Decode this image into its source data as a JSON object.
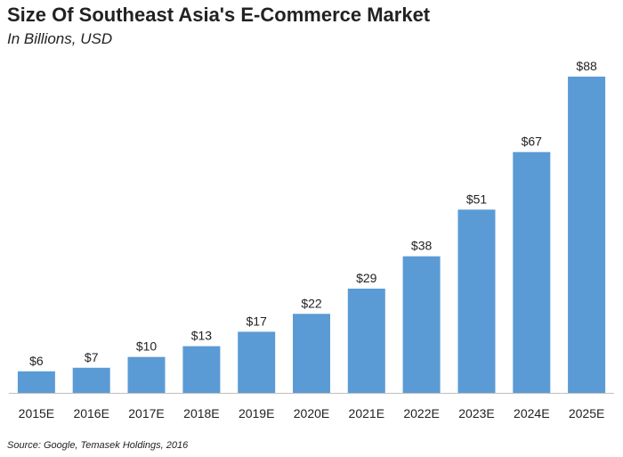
{
  "chart_data": {
    "type": "bar",
    "title": "Size Of Southeast Asia's E-Commerce Market",
    "subtitle": "In Billions, USD",
    "source": "Source: Google, Temasek Holdings, 2016",
    "xlabel": "",
    "ylabel": "",
    "categories": [
      "2015E",
      "2016E",
      "2017E",
      "2018E",
      "2019E",
      "2020E",
      "2021E",
      "2022E",
      "2023E",
      "2024E",
      "2025E"
    ],
    "values": [
      6,
      7,
      10,
      13,
      17,
      22,
      29,
      38,
      51,
      67,
      88
    ],
    "value_labels": [
      "$6",
      "$7",
      "$10",
      "$13",
      "$17",
      "$22",
      "$29",
      "$38",
      "$51",
      "$67",
      "$88"
    ],
    "ylim": [
      0,
      88
    ],
    "grid": false,
    "bar_color": "#5b9bd5",
    "axis_color": "#bfbfbf"
  }
}
